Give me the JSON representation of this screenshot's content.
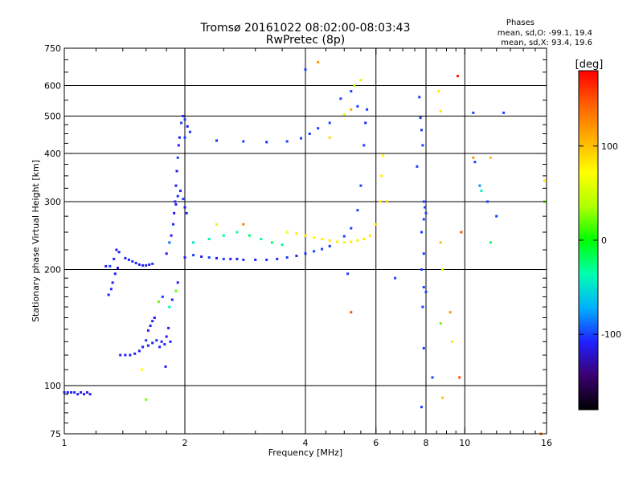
{
  "chart_data": {
    "type": "scatter",
    "title": "Tromsø 20161022 08:02:00-08:03:43",
    "subtitle": "RwPretec (8p)",
    "xlabel": "Frequency [MHz]",
    "ylabel": "Stationary phase Virtual Height [km]",
    "x_scale": "log",
    "y_scale": "log",
    "xlim": [
      1,
      16
    ],
    "ylim": [
      75,
      750
    ],
    "x_ticks": [
      1,
      2,
      4,
      6,
      8,
      10,
      16
    ],
    "y_ticks": [
      75,
      100,
      200,
      300,
      400,
      500,
      600,
      750
    ],
    "grid": true,
    "phase_note": {
      "title": "Phases",
      "line_o": "mean, sd,O: -99.1, 19.4",
      "line_x": "mean, sd,X:  93.4, 19.6"
    },
    "colorbar": {
      "label": "[deg]",
      "range": [
        -180,
        180
      ],
      "ticks": [
        100,
        0,
        -100
      ],
      "colors": [
        "#000000",
        "#3b0070",
        "#2020ff",
        "#00b0ff",
        "#00ffb0",
        "#00ff00",
        "#b0ff00",
        "#ffff00",
        "#ffb000",
        "#ff6000",
        "#ff0000"
      ]
    },
    "series": [
      {
        "points": [
          [
            1.0,
            96,
            -110
          ],
          [
            1.02,
            96,
            -110
          ],
          [
            1.04,
            96,
            -110
          ],
          [
            1.06,
            96,
            -105
          ],
          [
            1.08,
            95,
            -110
          ],
          [
            1.1,
            96,
            -110
          ],
          [
            1.12,
            95,
            -115
          ],
          [
            1.14,
            96,
            -110
          ],
          [
            1.16,
            95,
            -110
          ],
          [
            1.27,
            204,
            -110
          ],
          [
            1.3,
            204,
            -100
          ],
          [
            1.33,
            213,
            -110
          ],
          [
            1.35,
            225,
            -110
          ],
          [
            1.37,
            222,
            -110
          ],
          [
            1.29,
            172,
            -110
          ],
          [
            1.31,
            178,
            -105
          ],
          [
            1.32,
            185,
            -110
          ],
          [
            1.34,
            195,
            -110
          ],
          [
            1.36,
            202,
            -110
          ],
          [
            1.42,
            214,
            -110
          ],
          [
            1.45,
            212,
            -110
          ],
          [
            1.48,
            210,
            -105
          ],
          [
            1.51,
            208,
            -110
          ],
          [
            1.54,
            206,
            -110
          ],
          [
            1.57,
            205,
            -110
          ],
          [
            1.6,
            205,
            -110
          ],
          [
            1.63,
            206,
            -110
          ],
          [
            1.66,
            207,
            -100
          ],
          [
            1.38,
            120,
            -110
          ],
          [
            1.42,
            120,
            -110
          ],
          [
            1.46,
            120,
            -110
          ],
          [
            1.5,
            121,
            -110
          ],
          [
            1.54,
            123,
            -110
          ],
          [
            1.57,
            126,
            -110
          ],
          [
            1.6,
            131,
            -105
          ],
          [
            1.62,
            139,
            -110
          ],
          [
            1.64,
            143,
            -110
          ],
          [
            1.66,
            147,
            -110
          ],
          [
            1.68,
            150,
            -110
          ],
          [
            1.62,
            127,
            -110
          ],
          [
            1.66,
            129,
            -110
          ],
          [
            1.7,
            131,
            -105
          ],
          [
            1.73,
            126,
            -110
          ],
          [
            1.75,
            130,
            -110
          ],
          [
            1.78,
            128,
            -110
          ],
          [
            1.8,
            134,
            -110
          ],
          [
            1.82,
            141,
            -110
          ],
          [
            1.84,
            130,
            -110
          ],
          [
            1.56,
            110,
            70
          ],
          [
            1.6,
            92,
            25
          ],
          [
            1.72,
            165,
            20
          ],
          [
            1.76,
            170,
            -100
          ],
          [
            1.79,
            112,
            -110
          ],
          [
            1.83,
            160,
            -30
          ],
          [
            1.86,
            167,
            -110
          ],
          [
            1.9,
            176,
            20
          ],
          [
            1.92,
            185,
            -110
          ],
          [
            1.8,
            220,
            -110
          ],
          [
            1.83,
            235,
            -90
          ],
          [
            1.85,
            245,
            -110
          ],
          [
            1.87,
            262,
            -105
          ],
          [
            1.89,
            300,
            -110
          ],
          [
            1.9,
            330,
            -110
          ],
          [
            1.91,
            360,
            -110
          ],
          [
            1.92,
            390,
            -100
          ],
          [
            1.93,
            420,
            -110
          ],
          [
            1.94,
            440,
            -110
          ],
          [
            1.88,
            280,
            -110
          ],
          [
            1.9,
            295,
            -110
          ],
          [
            1.92,
            310,
            -105
          ],
          [
            1.95,
            320,
            -110
          ],
          [
            1.98,
            305,
            -100
          ],
          [
            2.0,
            290,
            -110
          ],
          [
            2.02,
            280,
            -105
          ],
          [
            1.96,
            480,
            -100
          ],
          [
            1.98,
            500,
            -110
          ],
          [
            2.0,
            490,
            -100
          ],
          [
            2.03,
            470,
            -110
          ],
          [
            2.06,
            455,
            -105
          ],
          [
            2.0,
            215,
            -110
          ],
          [
            2.1,
            218,
            -100
          ],
          [
            2.2,
            216,
            -110
          ],
          [
            2.3,
            215,
            -100
          ],
          [
            2.4,
            214,
            -110
          ],
          [
            2.5,
            213,
            -100
          ],
          [
            2.6,
            213,
            -110
          ],
          [
            2.7,
            213,
            -110
          ],
          [
            2.8,
            212,
            -105
          ],
          [
            3.0,
            212,
            -110
          ],
          [
            3.2,
            212,
            -105
          ],
          [
            3.4,
            213,
            -110
          ],
          [
            3.6,
            215,
            -100
          ],
          [
            3.8,
            217,
            -110
          ],
          [
            4.0,
            220,
            -105
          ],
          [
            4.2,
            223,
            -100
          ],
          [
            4.4,
            226,
            -100
          ],
          [
            4.6,
            230,
            -105
          ],
          [
            4.8,
            236,
            -100
          ],
          [
            5.0,
            244,
            -100
          ],
          [
            5.2,
            256,
            -100
          ],
          [
            5.4,
            285,
            -100
          ],
          [
            5.5,
            330,
            -100
          ],
          [
            5.6,
            420,
            -100
          ],
          [
            5.65,
            480,
            -105
          ],
          [
            5.7,
            520,
            -100
          ],
          [
            2.1,
            235,
            -50
          ],
          [
            2.3,
            240,
            -40
          ],
          [
            2.5,
            245,
            -30
          ],
          [
            2.7,
            250,
            -35
          ],
          [
            2.9,
            245,
            -20
          ],
          [
            3.1,
            240,
            -30
          ],
          [
            3.3,
            235,
            -20
          ],
          [
            3.5,
            232,
            -30
          ],
          [
            3.6,
            250,
            75
          ],
          [
            3.8,
            248,
            80
          ],
          [
            4.0,
            245,
            80
          ],
          [
            4.2,
            242,
            75
          ],
          [
            4.4,
            240,
            80
          ],
          [
            4.6,
            238,
            85
          ],
          [
            4.8,
            236,
            80
          ],
          [
            5.0,
            235,
            80
          ],
          [
            5.2,
            236,
            80
          ],
          [
            5.4,
            238,
            80
          ],
          [
            5.6,
            240,
            80
          ],
          [
            5.8,
            245,
            80
          ],
          [
            6.0,
            262,
            80
          ],
          [
            6.15,
            300,
            75
          ],
          [
            6.2,
            350,
            80
          ],
          [
            6.25,
            395,
            75
          ],
          [
            2.0,
            440,
            -100
          ],
          [
            2.4,
            432,
            -105
          ],
          [
            2.8,
            430,
            -100
          ],
          [
            3.2,
            428,
            -105
          ],
          [
            3.6,
            430,
            -100
          ],
          [
            3.9,
            438,
            -100
          ],
          [
            4.1,
            450,
            -100
          ],
          [
            4.3,
            465,
            -100
          ],
          [
            4.6,
            480,
            -100
          ],
          [
            5.0,
            505,
            60
          ],
          [
            5.2,
            520,
            110
          ],
          [
            5.4,
            530,
            -100
          ],
          [
            4.9,
            555,
            -100
          ],
          [
            5.2,
            580,
            -100
          ],
          [
            5.5,
            620,
            80
          ],
          [
            5.3,
            600,
            40
          ],
          [
            4.0,
            660,
            -100
          ],
          [
            4.3,
            690,
            120
          ],
          [
            4.6,
            440,
            90
          ],
          [
            5.1,
            195,
            -100
          ],
          [
            5.2,
            155,
            150
          ],
          [
            6.4,
            300,
            90
          ],
          [
            2.8,
            262,
            130
          ],
          [
            2.4,
            262,
            80
          ],
          [
            6.7,
            190,
            -100
          ],
          [
            7.6,
            370,
            -100
          ],
          [
            7.7,
            560,
            -100
          ],
          [
            7.75,
            495,
            -100
          ],
          [
            7.8,
            460,
            -100
          ],
          [
            7.85,
            420,
            -100
          ],
          [
            7.9,
            300,
            -100
          ],
          [
            7.95,
            290,
            -100
          ],
          [
            8.0,
            280,
            -100
          ],
          [
            7.9,
            270,
            -100
          ],
          [
            7.8,
            250,
            -100
          ],
          [
            7.9,
            220,
            -100
          ],
          [
            7.8,
            200,
            -100
          ],
          [
            7.9,
            180,
            -100
          ],
          [
            8.0,
            175,
            -100
          ],
          [
            7.85,
            160,
            -100
          ],
          [
            7.9,
            125,
            -100
          ],
          [
            7.8,
            88,
            -100
          ],
          [
            8.3,
            105,
            -100
          ],
          [
            8.6,
            580,
            80
          ],
          [
            8.7,
            515,
            80
          ],
          [
            8.7,
            235,
            100
          ],
          [
            8.8,
            200,
            60
          ],
          [
            8.7,
            145,
            20
          ],
          [
            8.8,
            93,
            100
          ],
          [
            9.2,
            155,
            120
          ],
          [
            9.3,
            130,
            80
          ],
          [
            9.7,
            105,
            150
          ],
          [
            9.6,
            635,
            170
          ],
          [
            9.8,
            250,
            150
          ],
          [
            10.5,
            390,
            120
          ],
          [
            10.6,
            380,
            -100
          ],
          [
            10.9,
            330,
            -80
          ],
          [
            11.0,
            320,
            -40
          ],
          [
            11.4,
            300,
            -100
          ],
          [
            11.6,
            390,
            100
          ],
          [
            11.6,
            235,
            -20
          ],
          [
            12.0,
            275,
            -100
          ],
          [
            12.5,
            510,
            -100
          ],
          [
            10.5,
            510,
            -100
          ],
          [
            15.8,
            300,
            20
          ],
          [
            15.8,
            340,
            80
          ],
          [
            15.5,
            75,
            140
          ]
        ]
      }
    ]
  }
}
